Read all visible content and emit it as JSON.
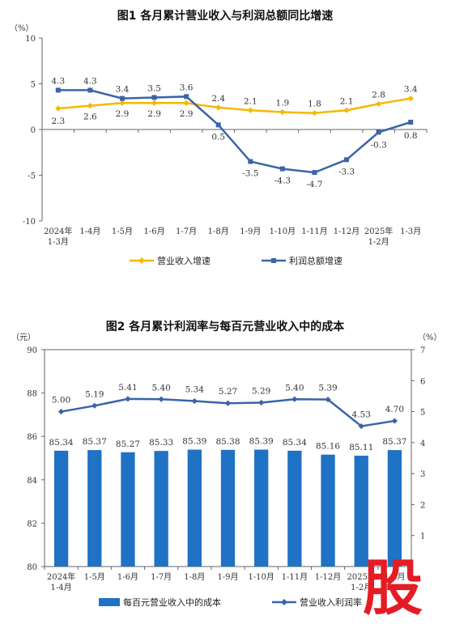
{
  "chart_data": [
    {
      "type": "line",
      "title": "图1  各月累计营业收入与利润总额同比增速",
      "y_unit": "（%）",
      "ylim": [
        -10,
        10
      ],
      "y_ticks": [
        "10",
        "5",
        "0",
        "-5",
        "-10"
      ],
      "categories": [
        [
          "2024年",
          "1-3月"
        ],
        [
          "1-4月"
        ],
        [
          "1-5月"
        ],
        [
          "1-6月"
        ],
        [
          "1-7月"
        ],
        [
          "1-8月"
        ],
        [
          "1-9月"
        ],
        [
          "1-10月"
        ],
        [
          "1-11月"
        ],
        [
          "1-12月"
        ],
        [
          "2025年",
          "1-2月"
        ],
        [
          "1-3月"
        ]
      ],
      "series": [
        {
          "name": "营业收入增速",
          "color": "#f5b800",
          "values": [
            2.3,
            2.6,
            2.9,
            2.9,
            2.9,
            2.4,
            2.1,
            1.9,
            1.8,
            2.1,
            2.8,
            3.4
          ],
          "labels": [
            "2.3",
            "2.6",
            "2.9",
            "2.9",
            "2.9",
            "2.4",
            "2.1",
            "1.9",
            "1.8",
            "2.1",
            "2.8",
            "3.4"
          ]
        },
        {
          "name": "利润总额增速",
          "color": "#3a64a8",
          "values": [
            4.3,
            4.3,
            3.4,
            3.5,
            3.6,
            0.5,
            -3.5,
            -4.3,
            -4.7,
            -3.3,
            -0.3,
            0.8
          ],
          "labels": [
            "4.3",
            "4.3",
            "3.4",
            "3.5",
            "3.6",
            "0.5",
            "-3.5",
            "-4.3",
            "-4.7",
            "-3.3",
            "-0.3",
            "0.8"
          ]
        }
      ]
    },
    {
      "type": "bar",
      "title": "图2  各月累计利润率与每百元营业收入中的成本",
      "y_left_unit": "（元）",
      "y_right_unit": "（%）",
      "ylim_left": [
        80,
        90
      ],
      "ylim_right": [
        0,
        7
      ],
      "y_left_ticks": [
        "90",
        "88",
        "86",
        "84",
        "82",
        "80"
      ],
      "y_right_ticks": [
        "7",
        "6",
        "5",
        "4",
        "3",
        "2",
        "1"
      ],
      "categories": [
        [
          "2024年",
          "1-4月"
        ],
        [
          "1-5月"
        ],
        [
          "1-6月"
        ],
        [
          "1-7月"
        ],
        [
          "1-8月"
        ],
        [
          "1-9月"
        ],
        [
          "1-10月"
        ],
        [
          "1-11月"
        ],
        [
          "1-12月"
        ],
        [
          "2025年",
          "1-2月"
        ],
        [
          "1-3月"
        ]
      ],
      "series": [
        {
          "name": "每百元营业收入中的成本",
          "color": "#1f72c4",
          "axis": "left",
          "values": [
            85.34,
            85.37,
            85.27,
            85.33,
            85.39,
            85.38,
            85.39,
            85.34,
            85.16,
            85.11,
            85.37
          ],
          "labels": [
            "85.34",
            "85.37",
            "85.27",
            "85.33",
            "85.39",
            "85.38",
            "85.39",
            "85.34",
            "85.16",
            "85.11",
            "85.37"
          ]
        },
        {
          "name": "营业收入利润率",
          "color": "#3a64a8",
          "axis": "right",
          "values": [
            5.0,
            5.19,
            5.41,
            5.4,
            5.34,
            5.27,
            5.29,
            5.4,
            5.39,
            4.53,
            4.7
          ],
          "labels": [
            "5.00",
            "5.19",
            "5.41",
            "5.40",
            "5.34",
            "5.27",
            "5.29",
            "5.40",
            "5.39",
            "4.53",
            "4.70"
          ]
        }
      ]
    }
  ],
  "watermark": {
    "text": "股",
    "color": "#e51c23"
  }
}
